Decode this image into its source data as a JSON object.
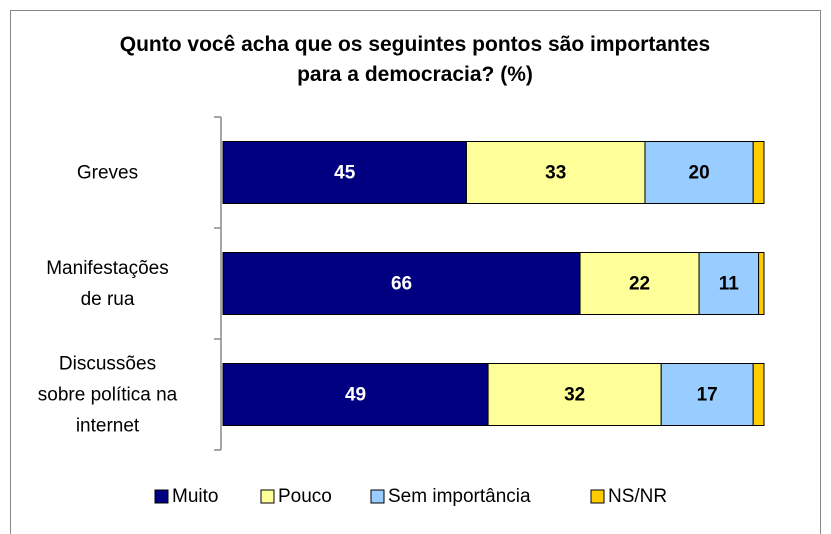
{
  "chart_data": {
    "type": "stacked_bar_horizontal",
    "title": "Qunto você acha que os seguintes pontos são importantes para a democracia? (%)",
    "categories": [
      "Greves",
      "Manifestações\nde rua",
      "Discussões\nsobre política na\ninternet"
    ],
    "series": [
      {
        "name": "Muito",
        "color": "#000080",
        "values": [
          45,
          66,
          49
        ]
      },
      {
        "name": "Pouco",
        "color": "#ffff99",
        "values": [
          33,
          22,
          32
        ]
      },
      {
        "name": "Sem importância",
        "color": "#99ccff",
        "values": [
          20,
          11,
          17
        ]
      },
      {
        "name": "NS/NR",
        "color": "#ffcc00",
        "values": [
          2,
          1,
          2
        ]
      }
    ],
    "legend": "bottom"
  }
}
